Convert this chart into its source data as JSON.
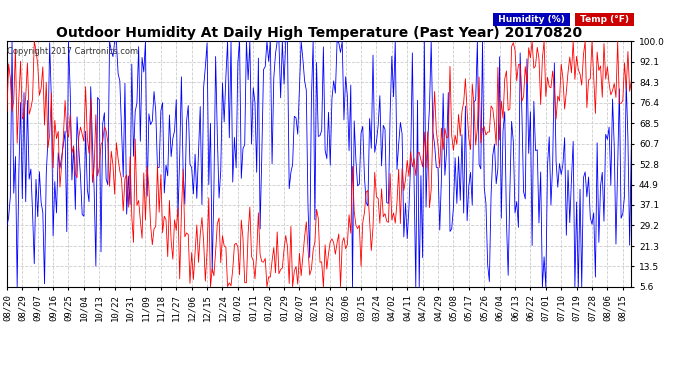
{
  "title": "Outdoor Humidity At Daily High Temperature (Past Year) 20170820",
  "copyright": "Copyright 2017 Cartronics.com",
  "legend_humidity": "Humidity (%)",
  "legend_temp": "Temp (°F)",
  "legend_humidity_bg": "#0000bb",
  "legend_temp_bg": "#cc0000",
  "ylim": [
    5.6,
    100.0
  ],
  "yticks": [
    5.6,
    13.5,
    21.3,
    29.2,
    37.1,
    44.9,
    52.8,
    60.7,
    68.5,
    76.4,
    84.3,
    92.1,
    100.0
  ],
  "bg_color": "#ffffff",
  "plot_bg": "#ffffff",
  "grid_color": "#cccccc",
  "humidity_color": "#0000ff",
  "temp_color": "#ff0000",
  "title_fontsize": 10,
  "copyright_fontsize": 6,
  "tick_fontsize": 6.5,
  "xlabel_rotation": 90
}
